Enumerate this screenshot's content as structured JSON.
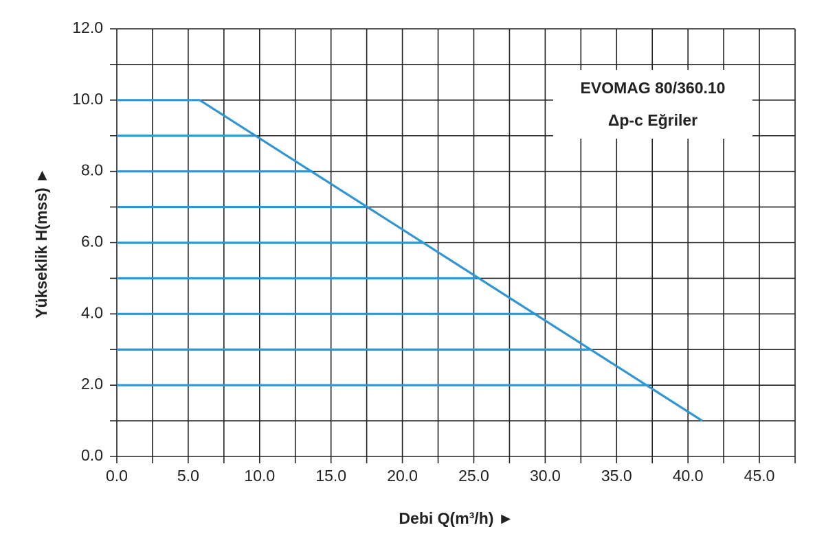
{
  "chart_data": {
    "type": "line",
    "annotations": [
      "EVOMAG 80/360.10",
      "Δp-c Eğriler"
    ],
    "xlabel": "Debi Q(m³/h) ►",
    "ylabel": "Yükseklik H(mss) ►",
    "xlim": [
      0,
      47.5
    ],
    "ylim": [
      0,
      12
    ],
    "xticks": [
      {
        "value": 0,
        "label": "0.0"
      },
      {
        "value": 5,
        "label": "5.0"
      },
      {
        "value": 10,
        "label": "10.0"
      },
      {
        "value": 15,
        "label": "15.0"
      },
      {
        "value": 20,
        "label": "20.0"
      },
      {
        "value": 25,
        "label": "25.0"
      },
      {
        "value": 30,
        "label": "30.0"
      },
      {
        "value": 35,
        "label": "35.0"
      },
      {
        "value": 40,
        "label": "40.0"
      },
      {
        "value": 45,
        "label": "45.0"
      }
    ],
    "yticks": [
      {
        "value": 0,
        "label": "0.0"
      },
      {
        "value": 2,
        "label": "2.0"
      },
      {
        "value": 4,
        "label": "4.0"
      },
      {
        "value": 6,
        "label": "6.0"
      },
      {
        "value": 8,
        "label": "8.0"
      },
      {
        "value": 10,
        "label": "10.0"
      },
      {
        "value": 12,
        "label": "12.0"
      }
    ],
    "x_minor_ticks": [
      2.5,
      7.5,
      12.5,
      17.5,
      22.5,
      27.5,
      32.5,
      37.5,
      42.5,
      47.5
    ],
    "y_minor_ticks": [
      1,
      3,
      5,
      7,
      9,
      11
    ],
    "grid": true,
    "series": [
      {
        "color": "#2f95d3",
        "x": [
          0,
          5.8,
          41.0
        ],
        "values": [
          10,
          10,
          1
        ]
      },
      {
        "color": "#2f95d3",
        "x": [
          0,
          9.7
        ],
        "values": [
          9,
          9
        ]
      },
      {
        "color": "#2f95d3",
        "x": [
          0,
          13.7
        ],
        "values": [
          8,
          8
        ]
      },
      {
        "color": "#2f95d3",
        "x": [
          0,
          17.6
        ],
        "values": [
          7,
          7
        ]
      },
      {
        "color": "#2f95d3",
        "x": [
          0,
          21.5
        ],
        "values": [
          6,
          6
        ]
      },
      {
        "color": "#2f95d3",
        "x": [
          0,
          25.3
        ],
        "values": [
          5,
          5
        ]
      },
      {
        "color": "#2f95d3",
        "x": [
          0,
          29.4
        ],
        "values": [
          4,
          4
        ]
      },
      {
        "color": "#2f95d3",
        "x": [
          0,
          33.1
        ],
        "values": [
          3,
          3
        ]
      },
      {
        "color": "#2f95d3",
        "x": [
          0,
          37.3
        ],
        "values": [
          2,
          2
        ]
      }
    ]
  }
}
